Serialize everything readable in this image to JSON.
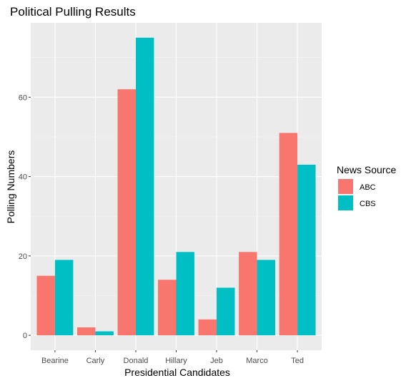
{
  "chart_data": {
    "type": "bar",
    "title": "Political Pulling Results",
    "xlabel": "Presidential Candidates",
    "ylabel": "Polling Numbers",
    "categories": [
      "Bearine",
      "Carly",
      "Donald",
      "Hillary",
      "Jeb",
      "Marco",
      "Ted"
    ],
    "series": [
      {
        "name": "ABC",
        "color": "#F8766D",
        "values": [
          15,
          2,
          62,
          14,
          4,
          21,
          51
        ]
      },
      {
        "name": "CBS",
        "color": "#00BFC4",
        "values": [
          19,
          1,
          75,
          21,
          12,
          19,
          43
        ]
      }
    ],
    "ylim": [
      -3.75,
      78.75
    ],
    "yticks": [
      0,
      20,
      40,
      60
    ],
    "grid": true,
    "legend": {
      "title": "News Source",
      "position": "right"
    }
  }
}
